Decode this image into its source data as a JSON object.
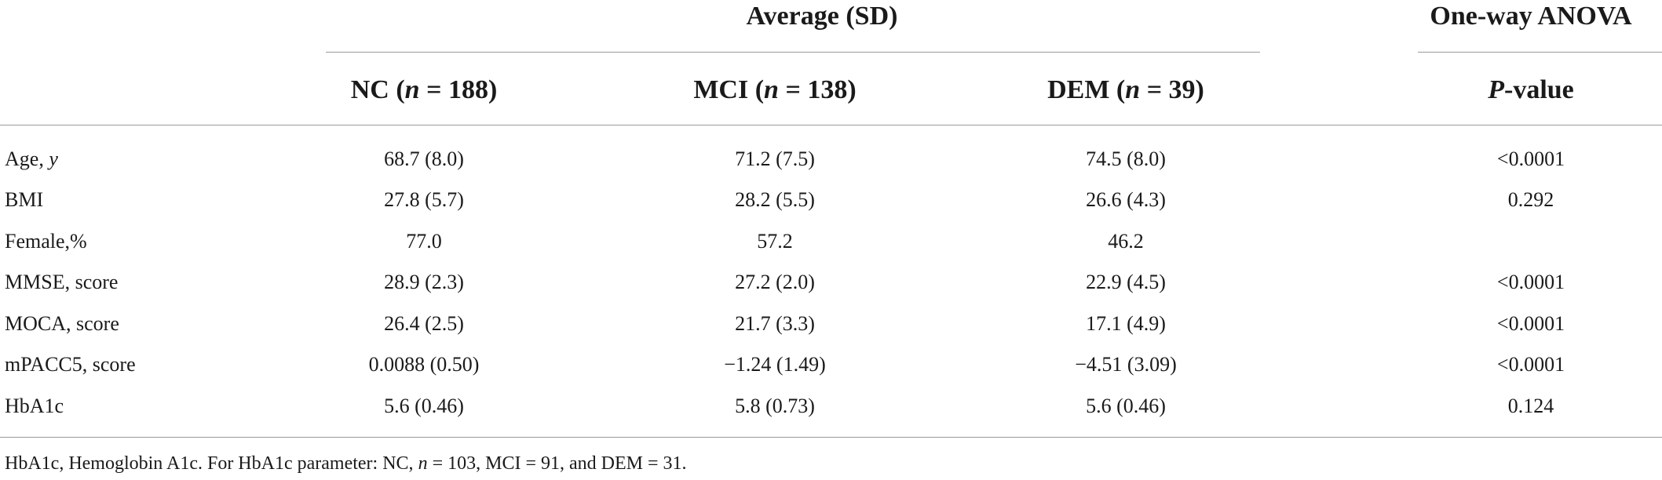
{
  "table": {
    "group_header": "Average (SD)",
    "anova_header": "One-way ANOVA",
    "columns": [
      {
        "pre": "NC (",
        "var": "n",
        "post": " = 188)"
      },
      {
        "pre": "MCI (",
        "var": "n",
        "post": " = 138)"
      },
      {
        "pre": "DEM (",
        "var": "n",
        "post": " = 39)"
      }
    ],
    "pvalue_header": {
      "var": "P",
      "post": "-value"
    },
    "rows": [
      {
        "label_text": "Age, ",
        "label_ital": "y",
        "nc": "68.7 (8.0)",
        "mci": "71.2 (7.5)",
        "dem": "74.5 (8.0)",
        "p": "<0.0001"
      },
      {
        "label_text": "BMI",
        "label_ital": "",
        "nc": "27.8 (5.7)",
        "mci": "28.2 (5.5)",
        "dem": "26.6 (4.3)",
        "p": "0.292"
      },
      {
        "label_text": "Female,%",
        "label_ital": "",
        "nc": "77.0",
        "mci": "57.2",
        "dem": "46.2",
        "p": ""
      },
      {
        "label_text": "MMSE, score",
        "label_ital": "",
        "nc": "28.9 (2.3)",
        "mci": "27.2 (2.0)",
        "dem": "22.9 (4.5)",
        "p": "<0.0001"
      },
      {
        "label_text": "MOCA, score",
        "label_ital": "",
        "nc": "26.4 (2.5)",
        "mci": "21.7 (3.3)",
        "dem": "17.1 (4.9)",
        "p": "<0.0001"
      },
      {
        "label_text": "mPACC5, score",
        "label_ital": "",
        "nc": "0.0088 (0.50)",
        "mci": "−1.24 (1.49)",
        "dem": "−4.51 (3.09)",
        "p": "<0.0001"
      },
      {
        "label_text": "HbA1c",
        "label_ital": "",
        "nc": "5.6 (0.46)",
        "mci": "5.8 (0.73)",
        "dem": "5.6 (0.46)",
        "p": "0.124"
      }
    ],
    "footnote": {
      "part1": "HbA1c, Hemoglobin A1c. For HbA1c parameter: NC, ",
      "var": "n",
      "part2": " = 103, MCI = 91, and DEM = 31."
    }
  }
}
